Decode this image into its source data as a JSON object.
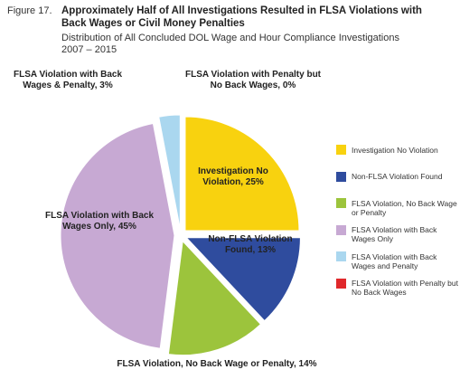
{
  "chart_data": {
    "type": "pie",
    "figure": "Figure 17.",
    "title": "Approximately Half of All Investigations Resulted in FLSA Violations with Back Wages or Civil Money Penalties",
    "subtitle": "Distribution of All Concluded DOL Wage and Hour Compliance Investigations 2007 – 2015",
    "categories": [
      "Investigation No Violation",
      "Non-FLSA Violation Found",
      "FLSA Violation, No Back Wage or Penalty",
      "FLSA Violation with Back Wages Only",
      "FLSA Violation with Back Wages and Penalty",
      "FLSA Violation with Penalty but No Back Wages"
    ],
    "values": [
      25,
      13,
      14,
      45,
      3,
      0
    ],
    "value_labels": [
      "Investigation No Violation, 25%",
      "Non-FLSA Violation Found, 13%",
      "FLSA Violation, No Back Wage or Penalty, 14%",
      "FLSA Violation with Back Wages Only, 45%",
      "FLSA Violation with Back Wages & Penalty, 3%",
      "FLSA Violation with Penalty but No Back Wages, 0%"
    ],
    "colors": [
      "#f8d20f",
      "#2f4c9e",
      "#9cc43c",
      "#c7a9d3",
      "#aad7ef",
      "#e0282b"
    ],
    "legend": "right"
  }
}
